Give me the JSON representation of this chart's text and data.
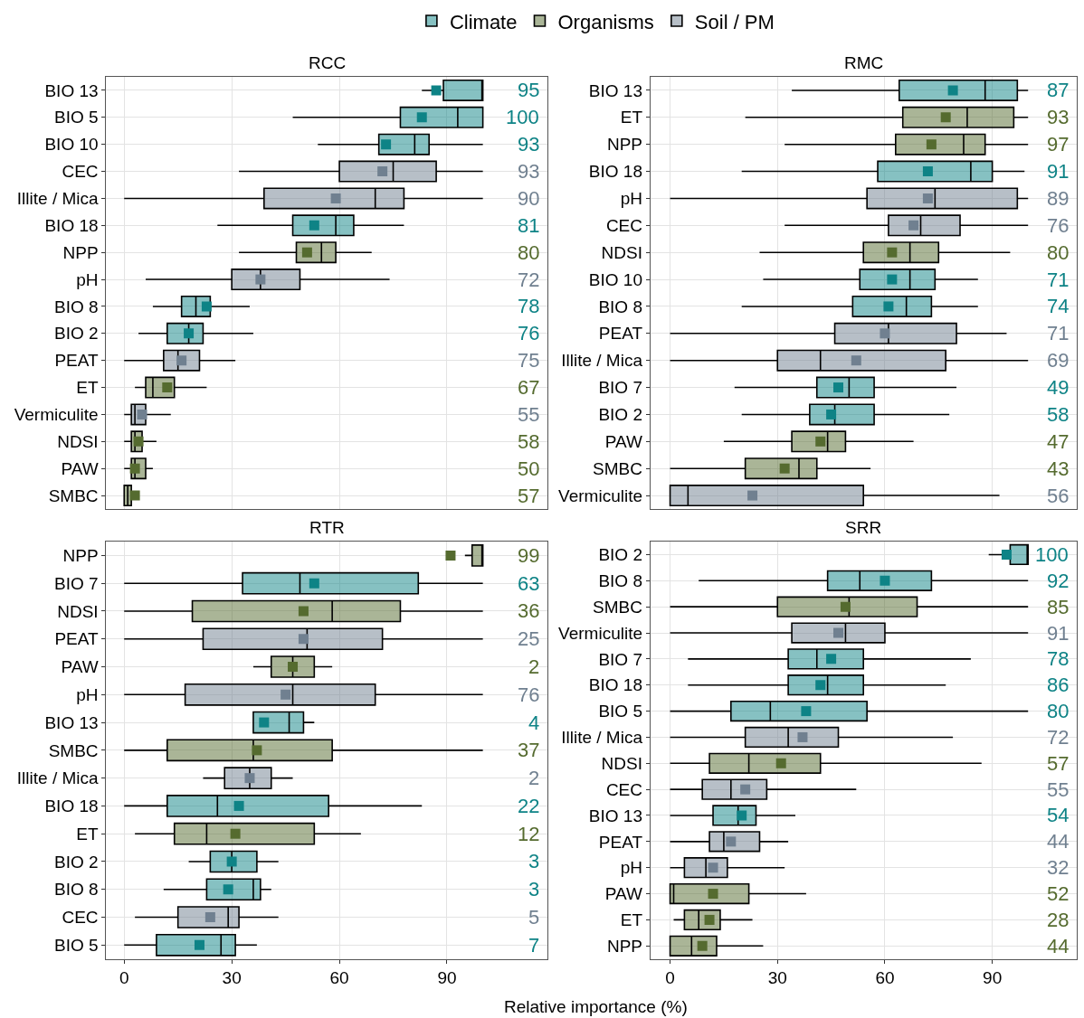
{
  "chart_data": [
    {
      "type": "box",
      "title": "RCC",
      "orientation": "horizontal",
      "legend": "top",
      "grid": true,
      "tick_labels": "y",
      "marker": "square",
      "xlim": [
        -5,
        118
      ],
      "xticks": [
        0,
        30,
        60,
        90
      ],
      "categories": [
        "BIO 13",
        "BIO 5",
        "BIO 10",
        "CEC",
        "Illite / Mica",
        "BIO 18",
        "NPP",
        "pH",
        "BIO 8",
        "BIO 2",
        "PEAT",
        "ET",
        "Vermiculite",
        "NDSI",
        "PAW",
        "SMBC"
      ],
      "series": [
        {
          "name": "Climate",
          "color": "#0e8386",
          "boxes": [
            {
              "low": 83,
              "q1": 89,
              "median": 100,
              "q3": 100,
              "high": 100,
              "mean": 87
            },
            {
              "low": 47,
              "q1": 77,
              "median": 93,
              "q3": 100,
              "high": 100,
              "mean": 83
            },
            {
              "low": 54,
              "q1": 71,
              "median": 81,
              "q3": 85,
              "high": 100,
              "mean": 73
            },
            null,
            null,
            {
              "low": 26,
              "q1": 47,
              "median": 59,
              "q3": 64,
              "high": 78,
              "mean": 53
            },
            null,
            null,
            {
              "low": 8,
              "q1": 16,
              "median": 20,
              "q3": 24,
              "high": 35,
              "mean": 23
            },
            {
              "low": 4,
              "q1": 12,
              "median": 18,
              "q3": 22,
              "high": 36,
              "mean": 18
            },
            null,
            null,
            null,
            null,
            null,
            null
          ],
          "value_labels": [
            "95",
            "100",
            "93",
            null,
            null,
            "81",
            null,
            null,
            "78",
            "76",
            null,
            null,
            null,
            null,
            null,
            null
          ]
        },
        {
          "name": "Organisms",
          "color": "#556b2f",
          "boxes": [
            null,
            null,
            null,
            null,
            null,
            null,
            {
              "low": 32,
              "q1": 48,
              "median": 55,
              "q3": 59,
              "high": 69,
              "mean": 51
            },
            null,
            null,
            null,
            null,
            {
              "low": 3,
              "q1": 6,
              "median": 8,
              "q3": 14,
              "high": 23,
              "mean": 12
            },
            null,
            {
              "low": 0,
              "q1": 2,
              "median": 3,
              "q3": 5,
              "high": 9,
              "mean": 4
            },
            {
              "low": 0,
              "q1": 2,
              "median": 3,
              "q3": 6,
              "high": 8,
              "mean": 3
            },
            {
              "low": 0,
              "q1": 0,
              "median": 1,
              "q3": 2,
              "high": 2,
              "mean": 3
            }
          ],
          "value_labels": [
            null,
            null,
            null,
            null,
            null,
            null,
            "80",
            null,
            null,
            null,
            null,
            "67",
            null,
            "58",
            "50",
            "57"
          ]
        },
        {
          "name": "Soil / PM",
          "color": "#708090",
          "boxes": [
            null,
            null,
            null,
            {
              "low": 32,
              "q1": 60,
              "median": 75,
              "q3": 87,
              "high": 100,
              "mean": 72
            },
            {
              "low": 0,
              "q1": 39,
              "median": 70,
              "q3": 78,
              "high": 100,
              "mean": 59
            },
            null,
            null,
            {
              "low": 6,
              "q1": 30,
              "median": 38,
              "q3": 49,
              "high": 74,
              "mean": 38
            },
            null,
            null,
            {
              "low": 0,
              "q1": 11,
              "median": 15,
              "q3": 21,
              "high": 31,
              "mean": 16
            },
            null,
            {
              "low": 0,
              "q1": 2,
              "median": 3,
              "q3": 6,
              "high": 13,
              "mean": 5
            },
            null,
            null,
            null
          ],
          "value_labels": [
            null,
            null,
            null,
            "93",
            "90",
            null,
            null,
            "72",
            null,
            null,
            "75",
            null,
            "55",
            null,
            null,
            null
          ]
        }
      ]
    },
    {
      "type": "box",
      "title": "RMC",
      "orientation": "horizontal",
      "grid": true,
      "tick_labels": "y",
      "marker": "square",
      "xlim": [
        -5.5,
        113.5
      ],
      "xticks": [
        0,
        30,
        60,
        90
      ],
      "categories": [
        "BIO 13",
        "ET",
        "NPP",
        "BIO 18",
        "pH",
        "CEC",
        "NDSI",
        "BIO 10",
        "BIO 8",
        "PEAT",
        "Illite / Mica",
        "BIO 7",
        "BIO 2",
        "PAW",
        "SMBC",
        "Vermiculite"
      ],
      "series": [
        {
          "color": "#0e8386",
          "boxes": [
            {
              "low": 34,
              "q1": 64,
              "median": 88,
              "q3": 97,
              "high": 100,
              "mean": 79
            },
            null,
            null,
            {
              "low": 20,
              "q1": 58,
              "median": 84,
              "q3": 90,
              "high": 99,
              "mean": 72
            },
            null,
            null,
            null,
            {
              "low": 26,
              "q1": 53,
              "median": 67,
              "q3": 74,
              "high": 86,
              "mean": 62
            },
            {
              "low": 20,
              "q1": 51,
              "median": 66,
              "q3": 73,
              "high": 86,
              "mean": 61
            },
            null,
            null,
            {
              "low": 18,
              "q1": 41,
              "median": 50,
              "q3": 57,
              "high": 80,
              "mean": 47
            },
            {
              "low": 20,
              "q1": 39,
              "median": 46,
              "q3": 57,
              "high": 78,
              "mean": 45
            },
            null,
            null,
            null
          ],
          "value_labels": [
            "87",
            null,
            null,
            "91",
            null,
            null,
            null,
            "71",
            "74",
            null,
            null,
            "49",
            "58",
            null,
            null,
            null
          ]
        },
        {
          "color": "#556b2f",
          "boxes": [
            null,
            {
              "low": 21,
              "q1": 65,
              "median": 83,
              "q3": 96,
              "high": 100,
              "mean": 77
            },
            {
              "low": 32,
              "q1": 63,
              "median": 82,
              "q3": 88,
              "high": 100,
              "mean": 73
            },
            null,
            null,
            null,
            {
              "low": 25,
              "q1": 54,
              "median": 67,
              "q3": 75,
              "high": 95,
              "mean": 62
            },
            null,
            null,
            null,
            null,
            null,
            null,
            {
              "low": 15,
              "q1": 34,
              "median": 44,
              "q3": 49,
              "high": 68,
              "mean": 42
            },
            {
              "low": 0,
              "q1": 21,
              "median": 36,
              "q3": 41,
              "high": 56,
              "mean": 32
            },
            null
          ],
          "value_labels": [
            null,
            "93",
            "97",
            null,
            null,
            null,
            "80",
            null,
            null,
            null,
            null,
            null,
            null,
            "47",
            "43",
            null
          ]
        },
        {
          "color": "#708090",
          "boxes": [
            null,
            null,
            null,
            null,
            {
              "low": 0,
              "q1": 55,
              "median": 74,
              "q3": 97,
              "high": 100,
              "mean": 72
            },
            {
              "low": 32,
              "q1": 61,
              "median": 70,
              "q3": 81,
              "high": 100,
              "mean": 68
            },
            null,
            null,
            null,
            {
              "low": 0,
              "q1": 46,
              "median": 61,
              "q3": 80,
              "high": 94,
              "mean": 60
            },
            {
              "low": 0,
              "q1": 30,
              "median": 42,
              "q3": 77,
              "high": 100,
              "mean": 52
            },
            null,
            null,
            null,
            null,
            {
              "low": 0,
              "q1": 0,
              "median": 5,
              "q3": 54,
              "high": 92,
              "mean": 23
            }
          ],
          "value_labels": [
            null,
            null,
            null,
            null,
            "89",
            "76",
            null,
            null,
            null,
            "71",
            "69",
            null,
            null,
            null,
            null,
            "56"
          ]
        }
      ]
    },
    {
      "type": "box",
      "title": "RTR",
      "xlabel": "Relative importance (%)",
      "orientation": "horizontal",
      "grid": true,
      "marker": "square",
      "xlim": [
        -5,
        118
      ],
      "xticks": [
        0,
        30,
        60,
        90
      ],
      "categories": [
        "NPP",
        "BIO 7",
        "NDSI",
        "PEAT",
        "PAW",
        "pH",
        "BIO 13",
        "SMBC",
        "Illite / Mica",
        "BIO 18",
        "ET",
        "BIO 2",
        "BIO 8",
        "CEC",
        "BIO 5"
      ],
      "series": [
        {
          "color": "#0e8386",
          "boxes": [
            null,
            {
              "low": 0,
              "q1": 33,
              "median": 49,
              "q3": 82,
              "high": 100,
              "mean": 53
            },
            null,
            null,
            null,
            null,
            {
              "low": 36,
              "q1": 36,
              "median": 46,
              "q3": 50,
              "high": 53,
              "mean": 39
            },
            null,
            null,
            {
              "low": 0,
              "q1": 12,
              "median": 26,
              "q3": 57,
              "high": 83,
              "mean": 32
            },
            null,
            {
              "low": 18,
              "q1": 24,
              "median": 30,
              "q3": 37,
              "high": 43,
              "mean": 30
            },
            {
              "low": 11,
              "q1": 23,
              "median": 36,
              "q3": 38,
              "high": 41,
              "mean": 29
            },
            null,
            {
              "low": 0,
              "q1": 9,
              "median": 27,
              "q3": 31,
              "high": 37,
              "mean": 21
            }
          ],
          "value_labels": [
            null,
            "63",
            null,
            null,
            null,
            null,
            "4",
            null,
            null,
            "22",
            null,
            "3",
            "3",
            null,
            "7"
          ]
        },
        {
          "color": "#556b2f",
          "boxes": [
            {
              "low": 95,
              "q1": 97,
              "median": 100,
              "q3": 100,
              "high": 100,
              "mean": 91
            },
            null,
            {
              "low": 0,
              "q1": 19,
              "median": 58,
              "q3": 77,
              "high": 100,
              "mean": 50
            },
            null,
            {
              "low": 36,
              "q1": 41,
              "median": 47,
              "q3": 53,
              "high": 58,
              "mean": 47
            },
            null,
            null,
            {
              "low": 0,
              "q1": 12,
              "median": 36,
              "q3": 58,
              "high": 100,
              "mean": 37
            },
            null,
            null,
            {
              "low": 3,
              "q1": 14,
              "median": 23,
              "q3": 53,
              "high": 66,
              "mean": 31
            },
            null,
            null,
            null,
            null
          ],
          "value_labels": [
            "99",
            null,
            "36",
            null,
            "2",
            null,
            null,
            "37",
            null,
            null,
            "12",
            null,
            null,
            null,
            null
          ]
        },
        {
          "color": "#708090",
          "boxes": [
            null,
            null,
            null,
            {
              "low": 0,
              "q1": 22,
              "median": 51,
              "q3": 72,
              "high": 100,
              "mean": 50
            },
            null,
            {
              "low": 0,
              "q1": 17,
              "median": 47,
              "q3": 70,
              "high": 100,
              "mean": 45
            },
            null,
            null,
            {
              "low": 22,
              "q1": 28,
              "median": 35,
              "q3": 41,
              "high": 47,
              "mean": 35
            },
            null,
            null,
            null,
            null,
            {
              "low": 3,
              "q1": 15,
              "median": 29,
              "q3": 32,
              "high": 43,
              "mean": 24
            },
            null
          ],
          "value_labels": [
            null,
            null,
            null,
            "25",
            null,
            "76",
            null,
            null,
            "2",
            null,
            null,
            null,
            null,
            "5",
            null
          ]
        }
      ]
    },
    {
      "type": "box",
      "title": "SRR",
      "orientation": "horizontal",
      "grid": true,
      "marker": "square",
      "xlim": [
        -5.5,
        113.5
      ],
      "xticks": [
        0,
        30,
        60,
        90
      ],
      "categories": [
        "BIO 2",
        "BIO 8",
        "SMBC",
        "Vermiculite",
        "BIO 7",
        "BIO 18",
        "BIO 5",
        "Illite / Mica",
        "NDSI",
        "CEC",
        "BIO 13",
        "PEAT",
        "pH",
        "PAW",
        "ET",
        "NPP"
      ],
      "series": [
        {
          "color": "#0e8386",
          "boxes": [
            {
              "low": 89,
              "q1": 95,
              "median": 100,
              "q3": 100,
              "high": 100,
              "mean": 94
            },
            {
              "low": 8,
              "q1": 44,
              "median": 53,
              "q3": 73,
              "high": 100,
              "mean": 60
            },
            null,
            null,
            {
              "low": 5,
              "q1": 33,
              "median": 41,
              "q3": 54,
              "high": 84,
              "mean": 45
            },
            {
              "low": 5,
              "q1": 33,
              "median": 44,
              "q3": 54,
              "high": 77,
              "mean": 42
            },
            {
              "low": 0,
              "q1": 17,
              "median": 28,
              "q3": 55,
              "high": 100,
              "mean": 38
            },
            null,
            null,
            null,
            {
              "low": 0,
              "q1": 12,
              "median": 19,
              "q3": 24,
              "high": 35,
              "mean": 20
            },
            null,
            null,
            null,
            null,
            null
          ],
          "value_labels": [
            "100",
            "92",
            null,
            null,
            "78",
            "86",
            "80",
            null,
            null,
            null,
            "54",
            null,
            null,
            null,
            null,
            null
          ]
        },
        {
          "color": "#556b2f",
          "boxes": [
            null,
            null,
            {
              "low": 0,
              "q1": 30,
              "median": 50,
              "q3": 69,
              "high": 100,
              "mean": 49
            },
            null,
            null,
            null,
            null,
            null,
            {
              "low": 0,
              "q1": 11,
              "median": 22,
              "q3": 42,
              "high": 87,
              "mean": 31
            },
            null,
            null,
            null,
            null,
            {
              "low": 0,
              "q1": 0,
              "median": 1,
              "q3": 22,
              "high": 38,
              "mean": 12
            },
            {
              "low": 1,
              "q1": 4,
              "median": 8,
              "q3": 14,
              "high": 23,
              "mean": 11
            },
            {
              "low": 0,
              "q1": 0,
              "median": 6,
              "q3": 13,
              "high": 26,
              "mean": 9
            }
          ],
          "value_labels": [
            null,
            null,
            "85",
            null,
            null,
            null,
            null,
            null,
            "57",
            null,
            null,
            null,
            null,
            "52",
            "28",
            "44"
          ]
        },
        {
          "color": "#708090",
          "boxes": [
            null,
            null,
            null,
            {
              "low": 0,
              "q1": 34,
              "median": 49,
              "q3": 60,
              "high": 100,
              "mean": 47
            },
            null,
            null,
            null,
            {
              "low": 0,
              "q1": 21,
              "median": 33,
              "q3": 47,
              "high": 79,
              "mean": 37
            },
            null,
            {
              "low": 0,
              "q1": 9,
              "median": 17,
              "q3": 27,
              "high": 52,
              "mean": 21
            },
            null,
            {
              "low": 0,
              "q1": 11,
              "median": 15,
              "q3": 25,
              "high": 33,
              "mean": 17
            },
            {
              "low": 0,
              "q1": 4,
              "median": 10,
              "q3": 16,
              "high": 32,
              "mean": 12
            },
            null,
            null,
            null
          ],
          "value_labels": [
            null,
            null,
            null,
            "91",
            null,
            null,
            null,
            "72",
            null,
            "55",
            null,
            "44",
            "32",
            null,
            null,
            null
          ]
        }
      ]
    }
  ]
}
